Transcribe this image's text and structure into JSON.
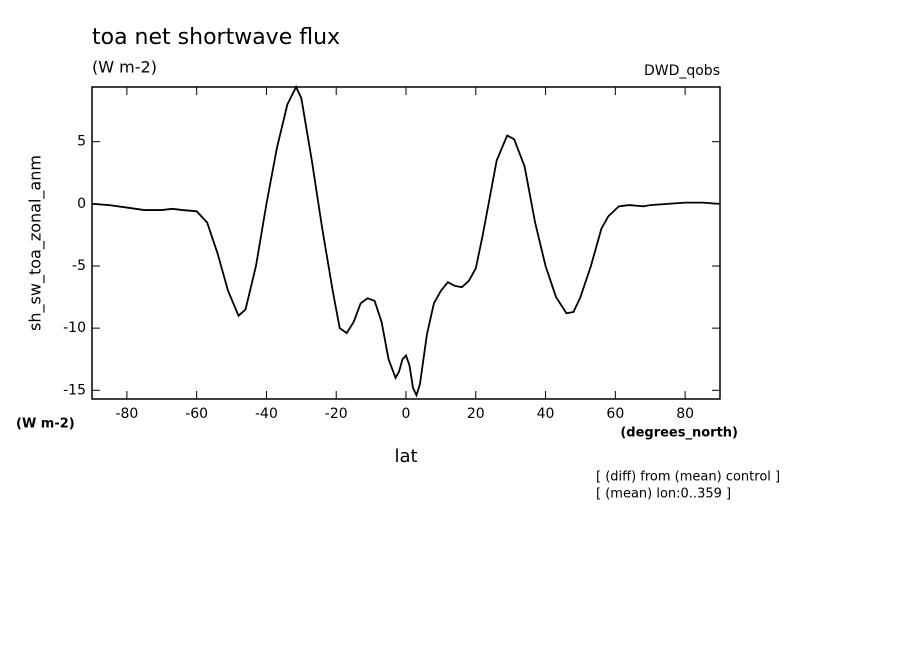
{
  "chart_data": {
    "type": "line",
    "title": "toa net shortwave flux",
    "subtitle": "(W m-2)",
    "dataset": "DWD_qobs",
    "y_label": "sh_sw_toa_zonal_anm",
    "y_units": "(W m-2)",
    "x_label": "lat",
    "x_units": "(degrees_north)",
    "notes": [
      "[ (diff) from (mean) control ]",
      "[ (mean) lon:0..359 ]"
    ],
    "xlim": [
      -90,
      90
    ],
    "ylim": [
      -15.7,
      9.4
    ],
    "xticks": [
      -80,
      -60,
      -40,
      -20,
      0,
      20,
      40,
      60,
      80
    ],
    "yticks": [
      -15,
      -10,
      -5,
      0,
      5
    ],
    "color": "#000000",
    "x": [
      -90,
      -85,
      -80,
      -75,
      -70,
      -67,
      -64,
      -60,
      -57,
      -54,
      -51,
      -48,
      -46,
      -43,
      -40,
      -37,
      -34,
      -31.5,
      -30,
      -27,
      -24,
      -21,
      -19,
      -17,
      -15,
      -13,
      -11,
      -9,
      -7,
      -5,
      -3,
      -2,
      -1,
      0,
      1,
      2,
      3,
      4,
      6,
      8,
      10,
      12,
      14,
      16,
      18,
      20,
      22,
      24,
      26,
      29,
      31,
      34,
      37,
      40,
      43,
      46,
      48,
      50,
      53,
      56,
      58,
      61,
      64,
      68,
      70,
      75,
      80,
      85,
      90
    ],
    "values": [
      0,
      -0.1,
      -0.3,
      -0.5,
      -0.5,
      -0.4,
      -0.5,
      -0.6,
      -1.5,
      -4,
      -7,
      -9,
      -8.5,
      -5,
      0,
      4.5,
      8,
      9.4,
      8.5,
      3.5,
      -2,
      -7,
      -10,
      -10.4,
      -9.5,
      -8,
      -7.6,
      -7.8,
      -9.5,
      -12.5,
      -14,
      -13.5,
      -12.5,
      -12.2,
      -13,
      -14.8,
      -15.4,
      -14.5,
      -10.5,
      -8,
      -7,
      -6.3,
      -6.6,
      -6.7,
      -6.2,
      -5.2,
      -2.5,
      0.5,
      3.5,
      5.5,
      5.2,
      3,
      -1.5,
      -5,
      -7.5,
      -8.8,
      -8.7,
      -7.5,
      -5,
      -2,
      -1,
      -0.2,
      -0.1,
      -0.2,
      -0.1,
      0,
      0.1,
      0.1,
      0
    ]
  }
}
